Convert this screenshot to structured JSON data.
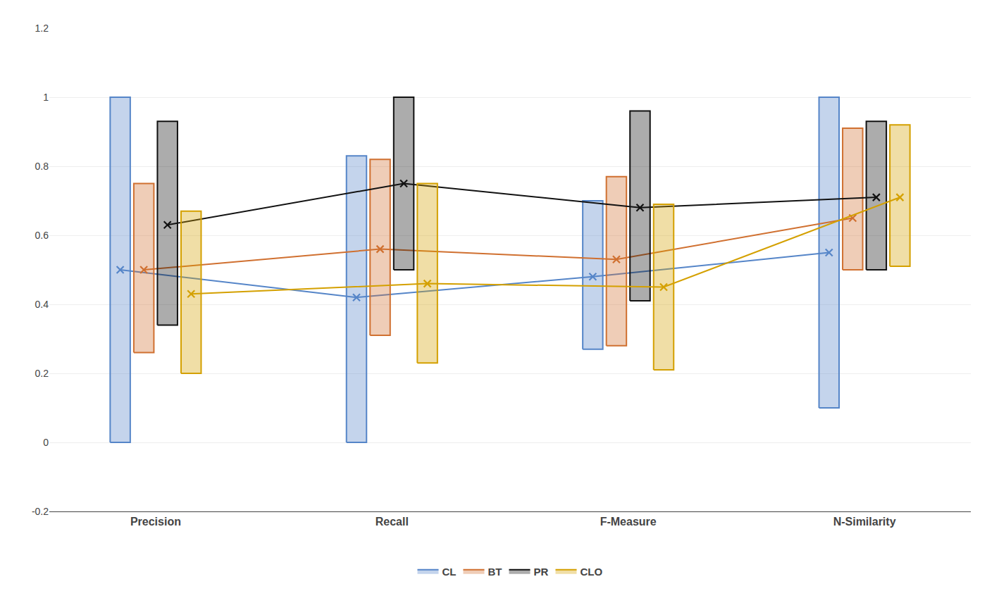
{
  "chart_data": {
    "type": "box",
    "categories": [
      "Precision",
      "Recall",
      "F-Measure",
      "N-Similarity"
    ],
    "series": [
      {
        "name": "CL",
        "color": "#5585c8",
        "low": [
          0.0,
          0.0,
          0.27,
          0.1
        ],
        "high": [
          1.0,
          0.83,
          0.7,
          1.0
        ],
        "values": [
          0.5,
          0.42,
          0.48,
          0.55
        ],
        "marker": "x"
      },
      {
        "name": "BT",
        "color": "#d07030",
        "low": [
          0.26,
          0.31,
          0.28,
          0.5
        ],
        "high": [
          0.75,
          0.82,
          0.77,
          0.91
        ],
        "values": [
          0.5,
          0.56,
          0.53,
          0.65
        ],
        "marker": "x"
      },
      {
        "name": "PR",
        "color": "#111111",
        "low": [
          0.34,
          0.5,
          0.41,
          0.5
        ],
        "high": [
          0.93,
          1.0,
          0.96,
          0.93
        ],
        "values": [
          0.63,
          0.75,
          0.68,
          0.71
        ],
        "marker": "x"
      },
      {
        "name": "CLO",
        "color": "#d4a000",
        "low": [
          0.2,
          0.23,
          0.21,
          0.51
        ],
        "high": [
          0.67,
          0.75,
          0.69,
          0.92
        ],
        "values": [
          0.43,
          0.46,
          0.45,
          0.71
        ],
        "marker": "x"
      }
    ],
    "ylim": [
      -0.2,
      1.2
    ],
    "yticks": [
      -0.2,
      0.0,
      0.2,
      0.4,
      0.6,
      0.8,
      1.0,
      1.2
    ],
    "grid": true,
    "legend": "bottom"
  }
}
